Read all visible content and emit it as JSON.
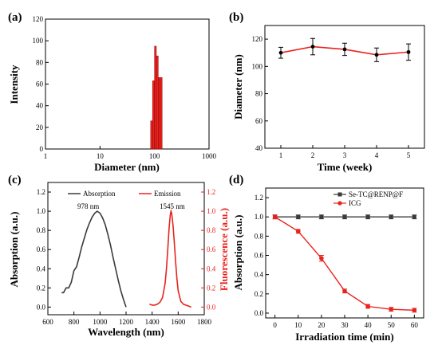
{
  "colors": {
    "black": "#000000",
    "red": "#e8231f",
    "dark_gray": "#3a3a3a",
    "axis": "#000000"
  },
  "chart_data": [
    {
      "panel": "(a)",
      "type": "bar",
      "xlabel": "Diameter (nm)",
      "ylabel": "Intensity",
      "xscale": "log",
      "xlim": [
        1,
        1000
      ],
      "ylim": [
        0,
        120
      ],
      "xticks": [
        1,
        10,
        100,
        1000
      ],
      "yticks": [
        0,
        20,
        40,
        60,
        80,
        100,
        120
      ],
      "grid": false,
      "bars": {
        "x": [
          85,
          92,
          100,
          108,
          117,
          127
        ],
        "values": [
          26,
          63,
          95,
          86,
          66,
          66
        ]
      }
    },
    {
      "panel": "(b)",
      "type": "line",
      "xlabel": "Time (week)",
      "ylabel": "Diameter (nm)",
      "xlim": [
        0.5,
        5.5
      ],
      "ylim": [
        40,
        130
      ],
      "xticks": [
        1,
        2,
        3,
        4,
        5
      ],
      "yticks": [
        40,
        60,
        80,
        100,
        120
      ],
      "grid": false,
      "series": [
        {
          "x": [
            1,
            2,
            3,
            4,
            5
          ],
          "values": [
            110,
            114.5,
            112.5,
            108.5,
            110.5
          ],
          "errors": [
            4,
            6,
            4.5,
            5,
            6
          ]
        }
      ]
    },
    {
      "panel": "(c)",
      "type": "line",
      "xlabel": "Wavelength (nm)",
      "ylabel": "Absorption (a.u.)",
      "ylabel_right": "Fluorescence (a.u.)",
      "xlim": [
        600,
        1800
      ],
      "ylim": [
        -0.08,
        1.3
      ],
      "ylim_right": [
        -0.08,
        1.3
      ],
      "xticks": [
        600,
        800,
        1000,
        1200,
        1400,
        1600,
        1800
      ],
      "yticks": [
        0.0,
        0.2,
        0.4,
        0.6,
        0.8,
        1.0,
        1.2
      ],
      "grid": false,
      "legend_position": "top",
      "annotations": [
        "978 nm",
        "1545 nm"
      ],
      "series": [
        {
          "name": "Absorption",
          "axis": "left",
          "x": [
            705,
            720,
            740,
            760,
            780,
            800,
            820,
            840,
            860,
            880,
            900,
            920,
            940,
            960,
            978,
            1000,
            1020,
            1040,
            1060,
            1080,
            1100,
            1120,
            1140,
            1160,
            1180,
            1200
          ],
          "values": [
            0.15,
            0.15,
            0.2,
            0.2,
            0.26,
            0.38,
            0.42,
            0.52,
            0.63,
            0.72,
            0.81,
            0.88,
            0.94,
            0.98,
            1.0,
            0.98,
            0.93,
            0.86,
            0.76,
            0.65,
            0.52,
            0.4,
            0.28,
            0.17,
            0.08,
            0.0
          ]
        },
        {
          "name": "Emission",
          "axis": "right",
          "x": [
            1380,
            1400,
            1420,
            1440,
            1460,
            1480,
            1500,
            1510,
            1520,
            1530,
            1540,
            1545,
            1550,
            1560,
            1570,
            1580,
            1590,
            1600,
            1620,
            1640,
            1660,
            1680,
            1700
          ],
          "values": [
            0.03,
            0.02,
            0.02,
            0.03,
            0.05,
            0.1,
            0.25,
            0.4,
            0.6,
            0.82,
            0.97,
            1.0,
            0.98,
            0.86,
            0.68,
            0.48,
            0.3,
            0.17,
            0.06,
            0.03,
            0.02,
            0.01,
            0.0
          ]
        }
      ]
    },
    {
      "panel": "(d)",
      "type": "line",
      "xlabel": "Irradiation time (min)",
      "ylabel": "Absorption (a.u.)",
      "xlim": [
        -4,
        64
      ],
      "ylim": [
        -0.05,
        1.3
      ],
      "xticks": [
        0,
        10,
        20,
        30,
        40,
        50,
        60
      ],
      "yticks": [
        0.0,
        0.2,
        0.4,
        0.6,
        0.8,
        1.0,
        1.2
      ],
      "grid": false,
      "legend_position": "top-right",
      "series": [
        {
          "name": "Se-TC@RENP@F",
          "x": [
            0,
            10,
            20,
            30,
            40,
            50,
            60
          ],
          "values": [
            1.0,
            1.0,
            1.0,
            1.0,
            1.0,
            1.0,
            1.0
          ],
          "errors": [
            0.02,
            0.02,
            0.02,
            0.02,
            0.02,
            0.02,
            0.02
          ]
        },
        {
          "name": "ICG",
          "x": [
            0,
            10,
            20,
            30,
            40,
            50,
            60
          ],
          "values": [
            1.0,
            0.85,
            0.57,
            0.23,
            0.07,
            0.04,
            0.03
          ],
          "errors": [
            0.02,
            0.02,
            0.03,
            0.02,
            0.02,
            0.02,
            0.02
          ]
        }
      ]
    }
  ]
}
